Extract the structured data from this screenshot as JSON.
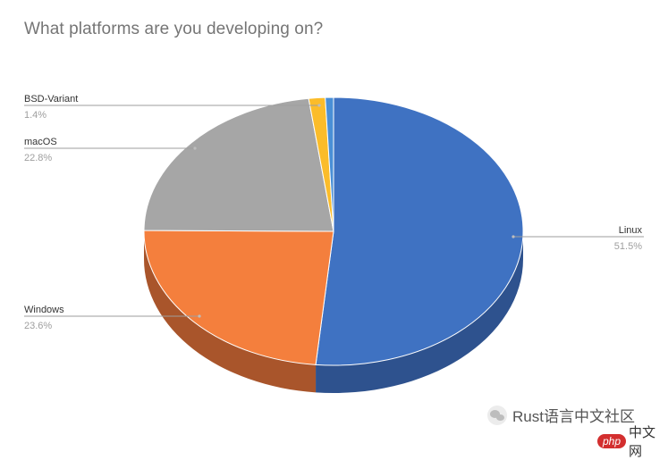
{
  "chart_data": {
    "type": "pie",
    "title": "What platforms are you developing on?",
    "slices": [
      {
        "label": "Linux",
        "value": 51.5,
        "display": "51.5%",
        "color": "#3f72c2",
        "side_color": "#2e528e"
      },
      {
        "label": "Windows",
        "value": 23.6,
        "display": "23.6%",
        "color": "#f47f3d",
        "side_color": "#a9552b"
      },
      {
        "label": "macOS",
        "value": 22.8,
        "display": "22.8%",
        "color": "#a6a6a6",
        "side_color": "#7a7a7a"
      },
      {
        "label": "BSD-Variant",
        "value": 1.4,
        "display": "1.4%",
        "color": "#fbbc2a",
        "side_color": "#b8891f"
      },
      {
        "label": "",
        "value": 0.7,
        "display": "",
        "color": "#4a8fd6",
        "side_color": "#33659a"
      }
    ],
    "legend": "callout-labels",
    "three_d": true
  },
  "watermark": {
    "text": "Rust语言中文社区",
    "icon": "wechat-icon"
  },
  "site_logo": {
    "badge": "php",
    "text": "中文网"
  }
}
